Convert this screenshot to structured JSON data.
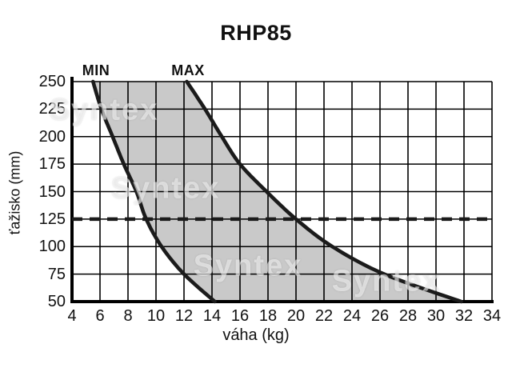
{
  "title": "RHP85",
  "chart_data": {
    "type": "area",
    "title": "RHP85",
    "xlabel": "váha (kg)",
    "ylabel": "ťažisko (mm)",
    "xlim": [
      4,
      34
    ],
    "ylim": [
      50,
      250
    ],
    "x_ticks": [
      4,
      6,
      8,
      10,
      12,
      14,
      16,
      18,
      20,
      22,
      24,
      26,
      28,
      30,
      32,
      34
    ],
    "y_ticks": [
      250,
      225,
      200,
      175,
      150,
      125,
      100,
      75,
      50
    ],
    "grid": "on",
    "legend_position": "above-plot",
    "series": [
      {
        "name": "MIN",
        "points": [
          [
            5.5,
            250
          ],
          [
            6.1,
            225
          ],
          [
            6.9,
            200
          ],
          [
            7.7,
            175
          ],
          [
            8.6,
            150
          ],
          [
            9.3,
            125
          ],
          [
            10.4,
            100
          ],
          [
            12.0,
            75
          ],
          [
            14.2,
            50
          ]
        ]
      },
      {
        "name": "MAX",
        "points": [
          [
            12.2,
            250
          ],
          [
            13.5,
            225
          ],
          [
            14.7,
            200
          ],
          [
            16.0,
            175
          ],
          [
            17.9,
            150
          ],
          [
            20.0,
            125
          ],
          [
            22.6,
            100
          ],
          [
            26.3,
            75
          ],
          [
            31.8,
            50
          ]
        ]
      }
    ],
    "band_between_series": true,
    "guide_line": {
      "y": 125,
      "style": "dashed"
    },
    "colors": {
      "band": "#c9c9c9",
      "curve": "#1b1b1b",
      "grid": "#000000",
      "background": "#ffffff"
    }
  },
  "watermark": {
    "text": "Syntex"
  }
}
